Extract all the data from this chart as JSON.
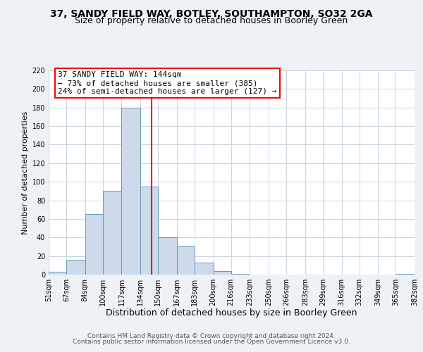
{
  "title": "37, SANDY FIELD WAY, BOTLEY, SOUTHAMPTON, SO32 2GA",
  "subtitle": "Size of property relative to detached houses in Boorley Green",
  "xlabel": "Distribution of detached houses by size in Boorley Green",
  "ylabel": "Number of detached properties",
  "footer_line1": "Contains HM Land Registry data © Crown copyright and database right 2024.",
  "footer_line2": "Contains public sector information licensed under the Open Government Licence v3.0.",
  "bin_edges": [
    51,
    67,
    84,
    100,
    117,
    134,
    150,
    167,
    183,
    200,
    216,
    233,
    250,
    266,
    283,
    299,
    316,
    332,
    349,
    365,
    382
  ],
  "bin_counts": [
    3,
    16,
    65,
    90,
    180,
    95,
    40,
    30,
    13,
    4,
    1,
    0,
    0,
    0,
    0,
    0,
    0,
    0,
    0,
    1
  ],
  "bar_color": "#ccdaea",
  "bar_edge_color": "#6699bb",
  "property_size": 144,
  "vline_color": "red",
  "annotation_line1": "37 SANDY FIELD WAY: 144sqm",
  "annotation_line2": "← 73% of detached houses are smaller (385)",
  "annotation_line3": "24% of semi-detached houses are larger (127) →",
  "annotation_box_edge": "red",
  "ylim": [
    0,
    220
  ],
  "tick_labels": [
    "51sqm",
    "67sqm",
    "84sqm",
    "100sqm",
    "117sqm",
    "134sqm",
    "150sqm",
    "167sqm",
    "183sqm",
    "200sqm",
    "216sqm",
    "233sqm",
    "250sqm",
    "266sqm",
    "283sqm",
    "299sqm",
    "316sqm",
    "332sqm",
    "349sqm",
    "365sqm",
    "382sqm"
  ],
  "background_color": "#eef2f7",
  "plot_bg_color": "#ffffff",
  "grid_color": "#c8d4e0",
  "title_fontsize": 10,
  "subtitle_fontsize": 9,
  "xlabel_fontsize": 9,
  "ylabel_fontsize": 8,
  "tick_fontsize": 7,
  "annotation_fontsize": 8,
  "footer_fontsize": 6.5
}
